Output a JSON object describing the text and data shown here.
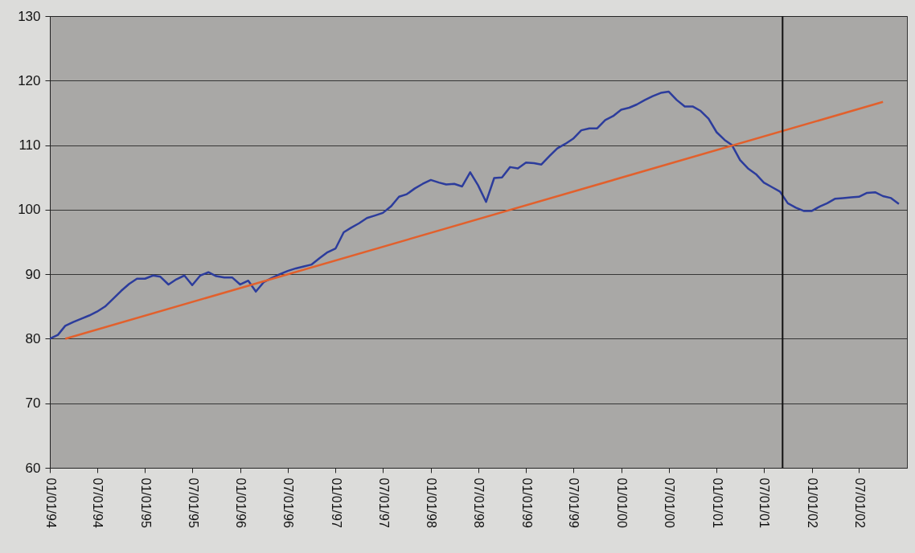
{
  "chart_data": {
    "type": "line",
    "xlim": [
      "1994-01-01",
      "2003-01-01"
    ],
    "ylim": [
      60,
      130
    ],
    "yticks": [
      60,
      70,
      80,
      90,
      100,
      110,
      120,
      130
    ],
    "xticks": [
      {
        "value": "1994-01-01",
        "label": "01/01/94"
      },
      {
        "value": "1994-07-01",
        "label": "07/01/94"
      },
      {
        "value": "1995-01-01",
        "label": "01/01/95"
      },
      {
        "value": "1995-07-01",
        "label": "07/01/95"
      },
      {
        "value": "1996-01-01",
        "label": "01/01/96"
      },
      {
        "value": "1996-07-01",
        "label": "07/01/96"
      },
      {
        "value": "1997-01-01",
        "label": "01/01/97"
      },
      {
        "value": "1997-07-01",
        "label": "07/01/97"
      },
      {
        "value": "1998-01-01",
        "label": "01/01/98"
      },
      {
        "value": "1998-07-01",
        "label": "07/01/98"
      },
      {
        "value": "1999-01-01",
        "label": "01/01/99"
      },
      {
        "value": "1999-07-01",
        "label": "07/01/99"
      },
      {
        "value": "2000-01-01",
        "label": "01/01/00"
      },
      {
        "value": "2000-07-01",
        "label": "07/01/00"
      },
      {
        "value": "2001-01-01",
        "label": "01/01/01"
      },
      {
        "value": "2001-07-01",
        "label": "07/01/01"
      },
      {
        "value": "2002-01-01",
        "label": "01/01/02"
      },
      {
        "value": "2002-07-01",
        "label": "07/01/02"
      }
    ],
    "grid": "y",
    "series": [
      {
        "color": "#2c3c9c",
        "x": [
          "1994-01",
          "1994-02",
          "1994-03",
          "1994-04",
          "1994-05",
          "1994-06",
          "1994-07",
          "1994-08",
          "1994-09",
          "1994-10",
          "1994-11",
          "1994-12",
          "1995-01",
          "1995-02",
          "1995-03",
          "1995-04",
          "1995-05",
          "1995-06",
          "1995-07",
          "1995-08",
          "1995-09",
          "1995-10",
          "1995-11",
          "1995-12",
          "1996-01",
          "1996-02",
          "1996-03",
          "1996-04",
          "1996-05",
          "1996-06",
          "1996-07",
          "1996-08",
          "1996-09",
          "1996-10",
          "1996-11",
          "1996-12",
          "1997-01",
          "1997-02",
          "1997-03",
          "1997-04",
          "1997-05",
          "1997-06",
          "1997-07",
          "1997-08",
          "1997-09",
          "1997-10",
          "1997-11",
          "1997-12",
          "1998-01",
          "1998-02",
          "1998-03",
          "1998-04",
          "1998-05",
          "1998-06",
          "1998-07",
          "1998-08",
          "1998-09",
          "1998-10",
          "1998-11",
          "1998-12",
          "1999-01",
          "1999-02",
          "1999-03",
          "1999-04",
          "1999-05",
          "1999-06",
          "1999-07",
          "1999-08",
          "1999-09",
          "1999-10",
          "1999-11",
          "1999-12",
          "2000-01",
          "2000-02",
          "2000-03",
          "2000-04",
          "2000-05",
          "2000-06",
          "2000-07",
          "2000-08",
          "2000-09",
          "2000-10",
          "2000-11",
          "2000-12",
          "2001-01",
          "2001-02",
          "2001-03",
          "2001-04",
          "2001-05",
          "2001-06",
          "2001-07",
          "2001-08",
          "2001-09",
          "2001-10",
          "2001-11",
          "2001-12",
          "2002-01",
          "2002-02",
          "2002-03",
          "2002-04",
          "2002-05",
          "2002-06",
          "2002-07",
          "2002-08",
          "2002-09",
          "2002-10",
          "2002-11",
          "2002-12"
        ],
        "values": [
          80.0,
          80.6,
          82.0,
          82.6,
          83.1,
          83.6,
          84.2,
          85.0,
          86.2,
          87.4,
          88.5,
          89.3,
          89.3,
          89.8,
          89.6,
          88.4,
          89.2,
          89.8,
          88.3,
          89.8,
          90.3,
          89.7,
          89.5,
          89.5,
          88.4,
          89.0,
          87.3,
          88.8,
          89.4,
          90.0,
          90.5,
          90.9,
          91.2,
          91.5,
          92.5,
          93.4,
          94.0,
          96.5,
          97.2,
          97.9,
          98.7,
          99.1,
          99.5,
          100.5,
          102.0,
          102.4,
          103.3,
          104.0,
          104.6,
          104.2,
          103.9,
          104.0,
          103.6,
          105.8,
          103.8,
          101.2,
          104.9,
          105.0,
          106.6,
          106.4,
          107.3,
          107.2,
          107.0,
          108.3,
          109.5,
          110.2,
          111.0,
          112.3,
          112.6,
          112.6,
          113.9,
          114.5,
          115.5,
          115.8,
          116.3,
          117.0,
          117.6,
          118.1,
          118.3,
          117.0,
          116.0,
          116.0,
          115.3,
          114.1,
          112.0,
          110.8,
          110.0,
          107.7,
          106.4,
          105.5,
          104.2,
          103.5,
          102.8,
          101.0,
          100.3,
          99.8,
          99.8,
          100.5,
          101.0,
          101.7,
          101.8,
          101.9,
          102.0,
          102.6,
          102.7,
          102.1,
          101.8,
          100.9
        ]
      },
      {
        "color": "#e2602c",
        "x": [
          "1994-03",
          "2002-10"
        ],
        "values": [
          80.0,
          116.7
        ]
      }
    ],
    "ref_lines": [
      {
        "axis": "x",
        "value": "2001-09-11",
        "color": "#111111"
      }
    ]
  }
}
